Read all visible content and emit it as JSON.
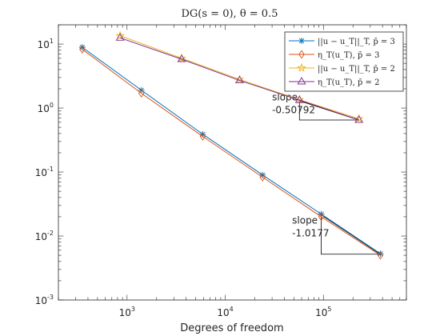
{
  "chart_data": {
    "type": "line",
    "title": "DG(s = 0), θ = 0.5",
    "xlabel": "Degrees of freedom",
    "ylabel": "",
    "xscale": "log",
    "yscale": "log",
    "xlim": [
      200,
      700000
    ],
    "ylim": [
      0.001,
      20
    ],
    "grid": false,
    "legend_position": "top-right",
    "x_ticks": [
      {
        "value": 1000,
        "base": "10",
        "exp": "3"
      },
      {
        "value": 10000,
        "base": "10",
        "exp": "4"
      },
      {
        "value": 100000,
        "base": "10",
        "exp": "5"
      }
    ],
    "y_ticks": [
      {
        "value": 0.001,
        "base": "10",
        "exp": "-3"
      },
      {
        "value": 0.01,
        "base": "10",
        "exp": "-2"
      },
      {
        "value": 0.1,
        "base": "10",
        "exp": "-1"
      },
      {
        "value": 1,
        "base": "10",
        "exp": "0"
      },
      {
        "value": 10,
        "base": "10",
        "exp": "1"
      }
    ],
    "series": [
      {
        "name": "||u − u_T||_T, p̄ = 3",
        "color": "#0072bd",
        "marker": "asterisk",
        "x": [
          350,
          1400,
          5900,
          24000,
          95000,
          380000
        ],
        "y": [
          8.9,
          1.9,
          0.39,
          0.09,
          0.022,
          0.0053
        ]
      },
      {
        "name": "η_T(u_T), p̄ = 3",
        "color": "#d95319",
        "marker": "diamond",
        "x": [
          350,
          1400,
          5900,
          24000,
          95000,
          380000
        ],
        "y": [
          8.3,
          1.7,
          0.36,
          0.083,
          0.02,
          0.005
        ]
      },
      {
        "name": "||u − u_T||_T, p̄ = 2",
        "color": "#edb120",
        "marker": "star",
        "x": [
          850,
          3600,
          14000,
          57000,
          230000
        ],
        "y": [
          13.5,
          6.0,
          2.8,
          1.35,
          0.68
        ]
      },
      {
        "name": "η_T(u_T), p̄ = 2",
        "color": "#7e2f8e",
        "marker": "triangle",
        "x": [
          850,
          3600,
          14000,
          57000,
          230000
        ],
        "y": [
          12.5,
          5.8,
          2.7,
          1.33,
          0.65
        ]
      }
    ],
    "slope_annotations": [
      {
        "label": "slope",
        "value": "-0.50792",
        "triangle": {
          "x1": 57000,
          "x2": 230000,
          "y_top": 1.3,
          "y_bottom": 0.65
        },
        "text_at": {
          "x": 30000,
          "y": 1.05
        }
      },
      {
        "label": "slope",
        "value": "-1.0177",
        "triangle": {
          "x1": 95000,
          "x2": 380000,
          "y_top": 0.0215,
          "y_bottom": 0.0052
        },
        "text_at": {
          "x": 48000,
          "y": 0.0125
        }
      }
    ]
  }
}
